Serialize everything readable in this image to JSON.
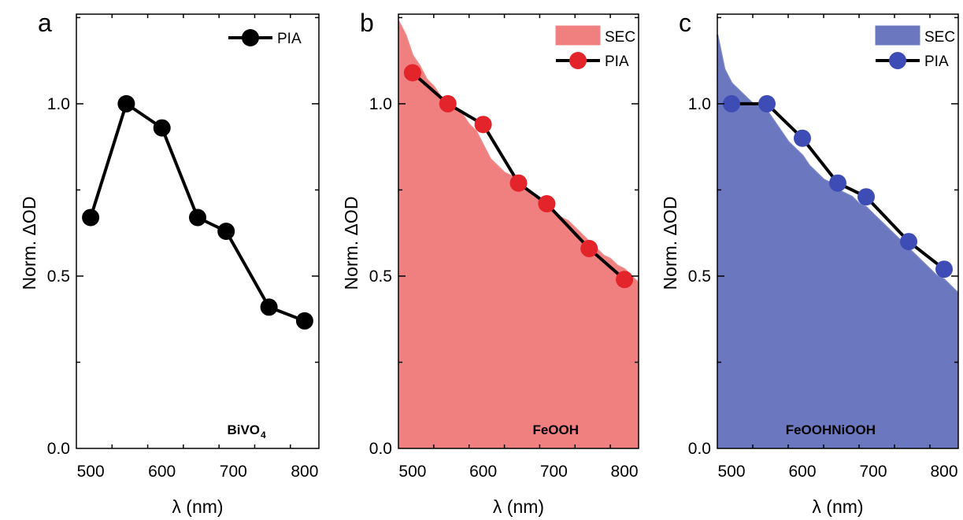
{
  "chart_data": [
    {
      "type": "line",
      "panel_letter": "a",
      "sample_label": "BiVO",
      "sample_label_sub": "4",
      "xlabel": "λ (nm)",
      "ylabel": "Norm. ΔOD",
      "xlim": [
        480,
        820
      ],
      "ylim": [
        0,
        1.26
      ],
      "xticks": [
        500,
        600,
        700,
        800
      ],
      "yticks": [
        0.0,
        0.5,
        1.0
      ],
      "ytick_labels": [
        "0.0",
        "0.5",
        "1.0"
      ],
      "grid": false,
      "legend": "top-right",
      "series": [
        {
          "name": "PIA",
          "kind": "line-marker",
          "color": "#000000",
          "x": [
            500,
            550,
            600,
            650,
            690,
            750,
            800
          ],
          "y": [
            0.67,
            1.0,
            0.93,
            0.67,
            0.63,
            0.41,
            0.37
          ]
        }
      ]
    },
    {
      "type": "area",
      "panel_letter": "b",
      "sample_label": "FeOOH",
      "sample_label_sub": "",
      "xlabel": "λ (nm)",
      "ylabel": "Norm. ΔOD",
      "xlim": [
        480,
        820
      ],
      "ylim": [
        0,
        1.26
      ],
      "xticks": [
        500,
        600,
        700,
        800
      ],
      "yticks": [
        0.0,
        0.5,
        1.0
      ],
      "ytick_labels": [
        "0.0",
        "0.5",
        "1.0"
      ],
      "grid": false,
      "legend": "top-right",
      "series": [
        {
          "name": "SEC",
          "kind": "area",
          "color": "#f08080",
          "x": [
            480,
            490,
            500,
            510,
            520,
            530,
            540,
            550,
            560,
            570,
            580,
            590,
            600,
            610,
            620,
            630,
            640,
            650,
            660,
            670,
            680,
            690,
            700,
            710,
            720,
            730,
            740,
            750,
            760,
            770,
            780,
            790,
            800,
            810,
            820
          ],
          "y": [
            1.24,
            1.2,
            1.14,
            1.11,
            1.07,
            1.05,
            1.02,
            1.01,
            0.99,
            0.97,
            0.94,
            0.92,
            0.88,
            0.84,
            0.82,
            0.8,
            0.79,
            0.77,
            0.75,
            0.73,
            0.72,
            0.71,
            0.69,
            0.67,
            0.66,
            0.64,
            0.62,
            0.6,
            0.58,
            0.56,
            0.55,
            0.53,
            0.52,
            0.5,
            0.48
          ]
        },
        {
          "name": "PIA",
          "kind": "line-marker",
          "color": "#e3242b",
          "x": [
            500,
            550,
            600,
            650,
            690,
            750,
            800
          ],
          "y": [
            1.09,
            1.0,
            0.94,
            0.77,
            0.71,
            0.58,
            0.49
          ]
        }
      ]
    },
    {
      "type": "area",
      "panel_letter": "c",
      "sample_label": "FeOOHNiOOH",
      "sample_label_sub": "",
      "xlabel": "λ (nm)",
      "ylabel": "Norm. ΔOD",
      "xlim": [
        480,
        820
      ],
      "ylim": [
        0,
        1.26
      ],
      "xticks": [
        500,
        600,
        700,
        800
      ],
      "yticks": [
        0.0,
        0.5,
        1.0
      ],
      "ytick_labels": [
        "0.0",
        "0.5",
        "1.0"
      ],
      "grid": false,
      "legend": "top-right",
      "series": [
        {
          "name": "SEC",
          "kind": "area",
          "color": "#6b78c0",
          "x": [
            480,
            490,
            500,
            510,
            520,
            530,
            540,
            550,
            560,
            570,
            580,
            590,
            600,
            610,
            620,
            630,
            640,
            650,
            660,
            670,
            680,
            690,
            700,
            710,
            720,
            730,
            740,
            750,
            760,
            770,
            780,
            790,
            800,
            810,
            820
          ],
          "y": [
            1.2,
            1.1,
            1.06,
            1.04,
            1.02,
            1.0,
            0.99,
            0.98,
            0.95,
            0.92,
            0.89,
            0.87,
            0.85,
            0.82,
            0.8,
            0.78,
            0.77,
            0.75,
            0.74,
            0.73,
            0.71,
            0.7,
            0.68,
            0.66,
            0.64,
            0.62,
            0.6,
            0.58,
            0.56,
            0.54,
            0.52,
            0.5,
            0.49,
            0.47,
            0.45
          ]
        },
        {
          "name": "PIA",
          "kind": "line-marker",
          "color": "#3e4db5",
          "x": [
            500,
            550,
            600,
            650,
            690,
            750,
            800
          ],
          "y": [
            1.0,
            1.0,
            0.9,
            0.77,
            0.73,
            0.6,
            0.52
          ]
        }
      ]
    }
  ]
}
